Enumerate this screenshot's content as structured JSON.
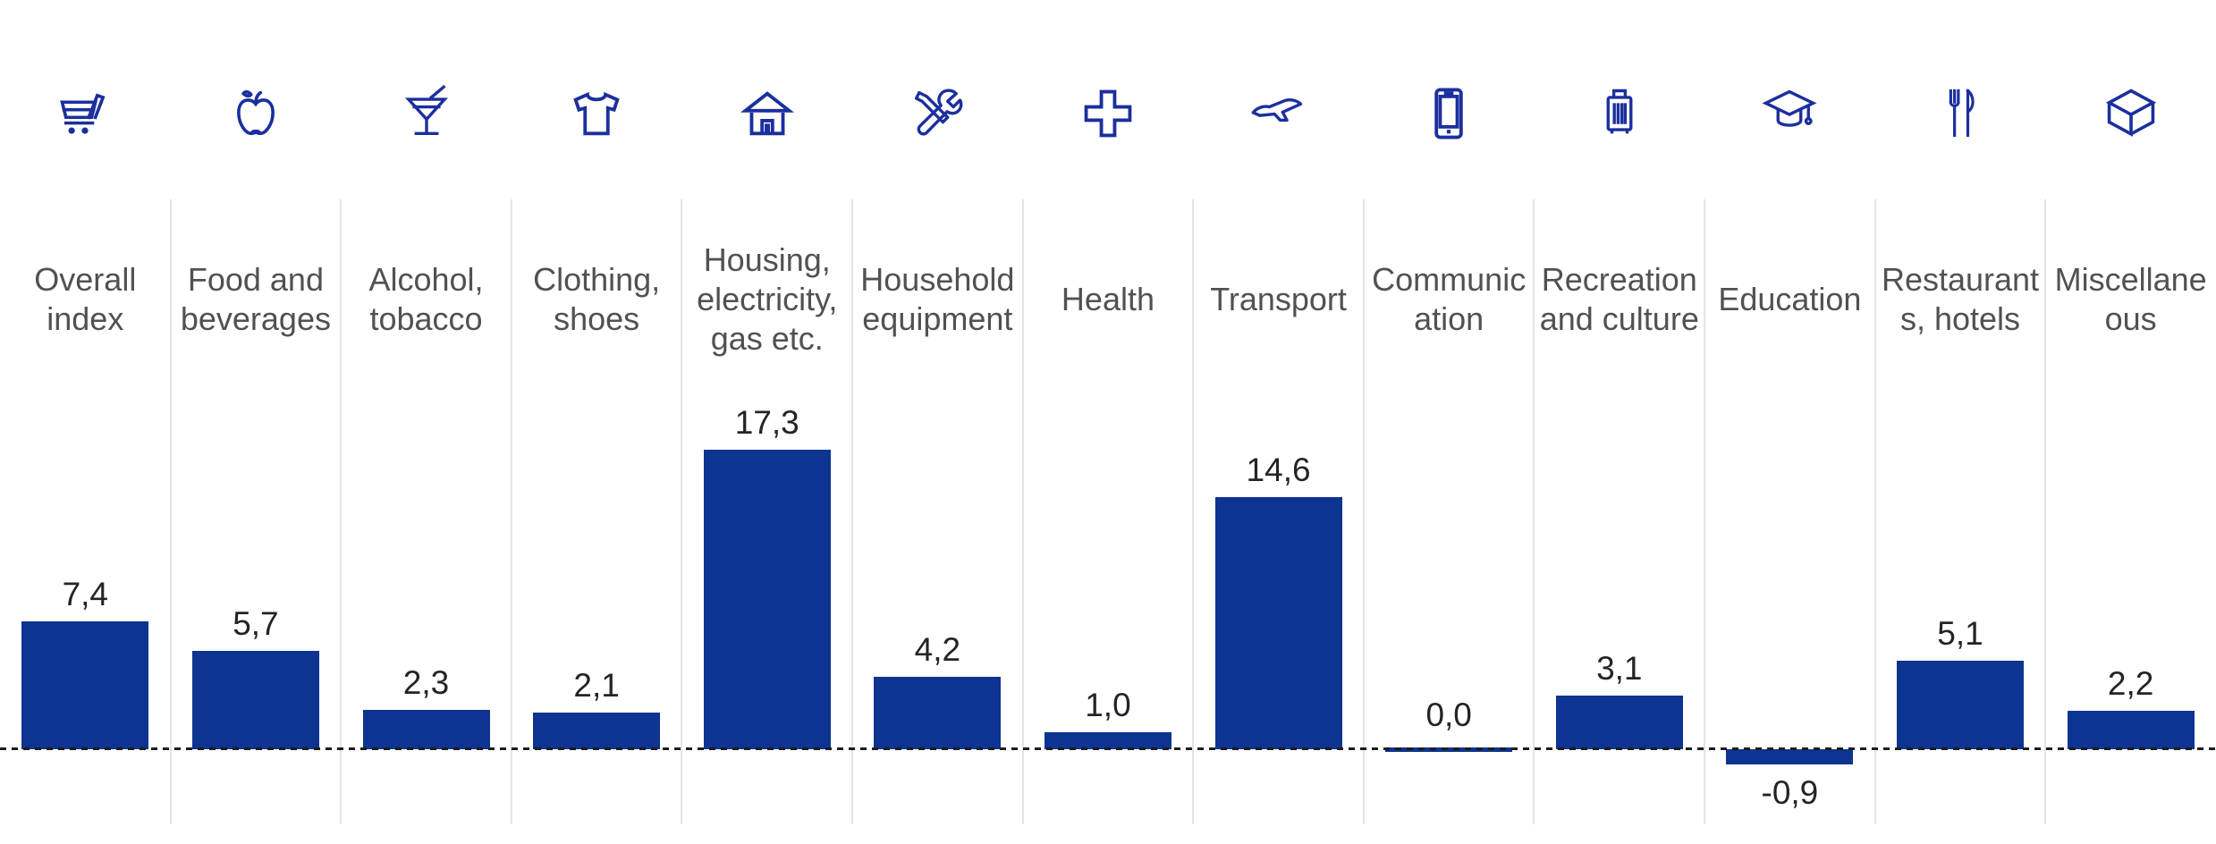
{
  "chart_data": {
    "type": "bar",
    "categories": [
      "Overall index",
      "Food and beverages",
      "Alcohol, tobacco",
      "Clothing, shoes",
      "Housing, electricity, gas etc.",
      "Household equipment",
      "Health",
      "Transport",
      "Communication",
      "Recreation and culture",
      "Education",
      "Restaurants, hotels",
      "Miscellaneous"
    ],
    "values": [
      7.4,
      5.7,
      2.3,
      2.1,
      17.3,
      4.2,
      1.0,
      14.6,
      0.0,
      3.1,
      -0.9,
      5.1,
      2.2
    ],
    "value_labels": [
      "7,4",
      "5,7",
      "2,3",
      "2,1",
      "17,3",
      "4,2",
      "1,0",
      "14,6",
      "0,0",
      "3,1",
      "-0,9",
      "5,1",
      "2,2"
    ],
    "title": "",
    "xlabel": "",
    "ylabel": "",
    "ylim": [
      -2,
      19
    ],
    "decimal_separator": ",",
    "zero_baseline": "dashed",
    "column_dividers": true,
    "legend": "none",
    "colors": {
      "bar_blue": "#0d3490",
      "icon_blue": "#1b2f9e",
      "category_label_gray": "#515151",
      "value_label_dark": "#242424",
      "divider_gray": "#e4e4e4"
    }
  },
  "columns": [
    {
      "label": "Overall\nindex",
      "icon": "shopping-cart-icon",
      "value": 7.4,
      "value_label": "7,4"
    },
    {
      "label": "Food and\nbeverages",
      "icon": "apple-icon",
      "value": 5.7,
      "value_label": "5,7"
    },
    {
      "label": "Alcohol,\ntobacco",
      "icon": "cocktail-icon",
      "value": 2.3,
      "value_label": "2,3"
    },
    {
      "label": "Clothing,\nshoes",
      "icon": "tshirt-icon",
      "value": 2.1,
      "value_label": "2,1"
    },
    {
      "label": "Housing,\nelectricity,\ngas etc.",
      "icon": "house-icon",
      "value": 17.3,
      "value_label": "17,3"
    },
    {
      "label": "Household\nequipment",
      "icon": "tools-icon",
      "value": 4.2,
      "value_label": "4,2"
    },
    {
      "label": "Health",
      "icon": "medical-cross-icon",
      "value": 1.0,
      "value_label": "1,0"
    },
    {
      "label": "Transport",
      "icon": "airplane-icon",
      "value": 14.6,
      "value_label": "14,6"
    },
    {
      "label": "Communic\nation",
      "icon": "smartphone-icon",
      "value": 0.0,
      "value_label": "0,0"
    },
    {
      "label": "Recreation\nand culture",
      "icon": "suitcase-icon",
      "value": 3.1,
      "value_label": "3,1"
    },
    {
      "label": "Education",
      "icon": "graduation-cap-icon",
      "value": -0.9,
      "value_label": "-0,9"
    },
    {
      "label": "Restaurant\ns, hotels",
      "icon": "cutlery-icon",
      "value": 5.1,
      "value_label": "5,1"
    },
    {
      "label": "Miscellane\nous",
      "icon": "cube-icon",
      "value": 2.2,
      "value_label": "2,2"
    }
  ]
}
